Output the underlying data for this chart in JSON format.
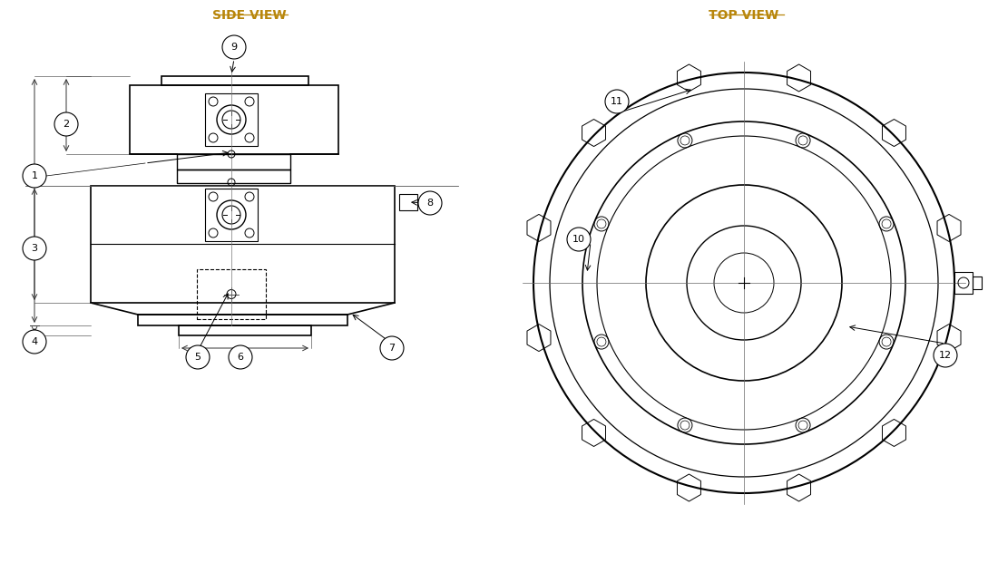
{
  "title_side": "SIDE VIEW",
  "title_top": "TOP VIEW",
  "title_color": "#b8860b",
  "line_color": "#000000",
  "bg_color": "#ffffff",
  "fig_width": 10.89,
  "fig_height": 6.42
}
